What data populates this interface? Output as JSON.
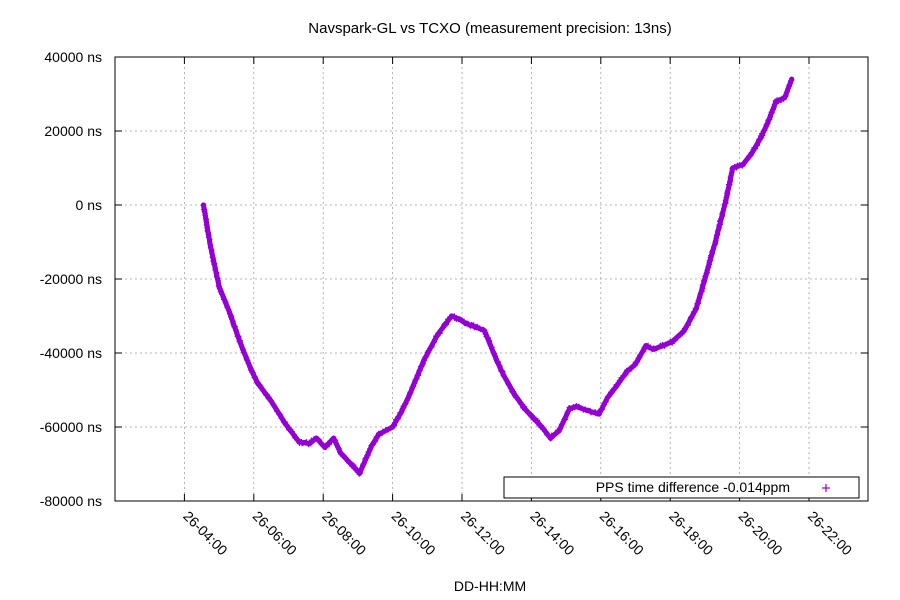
{
  "chart_data": {
    "type": "line",
    "title": "Navspark-GL vs TCXO (measurement precision: 13ns)",
    "xlabel": "DD-HH:MM",
    "ylabel": "",
    "x_ticks": [
      "26-04:00",
      "26-06:00",
      "26-08:00",
      "26-10:00",
      "26-12:00",
      "26-14:00",
      "26-16:00",
      "26-18:00",
      "26-20:00",
      "26-22:00"
    ],
    "x_tick_hours": [
      4,
      6,
      8,
      10,
      12,
      14,
      16,
      18,
      20,
      22
    ],
    "y_ticks": [
      "-80000 ns",
      "-60000 ns",
      "-40000 ns",
      "-20000 ns",
      "0 ns",
      "20000 ns",
      "40000 ns"
    ],
    "y_tick_values": [
      -80000,
      -60000,
      -40000,
      -20000,
      0,
      20000,
      40000
    ],
    "xlim_hours": [
      2.0,
      23.7
    ],
    "ylim": [
      -80000,
      40000
    ],
    "grid": true,
    "legend_position": "bottom-right",
    "series": [
      {
        "name": "PPS time difference -0.014ppm",
        "color": "#9400d3",
        "marker": "plus",
        "x_hours": [
          4.55,
          4.75,
          5.0,
          5.3,
          5.6,
          5.9,
          6.1,
          6.5,
          6.9,
          7.3,
          7.6,
          7.8,
          8.05,
          8.3,
          8.5,
          8.8,
          9.05,
          9.4,
          9.6,
          10.0,
          10.25,
          10.5,
          10.9,
          11.3,
          11.7,
          11.95,
          12.1,
          12.4,
          12.65,
          13.0,
          13.2,
          13.5,
          13.8,
          14.3,
          14.55,
          14.8,
          15.1,
          15.3,
          15.6,
          15.95,
          16.2,
          16.45,
          16.75,
          17.0,
          17.3,
          17.5,
          17.8,
          18.05,
          18.4,
          18.75,
          19.0,
          19.3,
          19.6,
          19.8,
          20.1,
          20.35,
          20.6,
          20.8,
          21.05,
          21.3,
          21.5
        ],
        "values": [
          0,
          -11000,
          -22000,
          -29000,
          -37000,
          -44000,
          -48000,
          -53000,
          -59000,
          -64000,
          -64500,
          -63000,
          -65500,
          -63000,
          -67000,
          -70000,
          -72500,
          -65000,
          -62000,
          -60000,
          -56000,
          -51000,
          -42000,
          -35000,
          -30000,
          -31000,
          -32000,
          -33000,
          -34000,
          -42000,
          -46000,
          -51000,
          -55000,
          -60000,
          -63000,
          -61000,
          -55000,
          -54500,
          -55500,
          -56500,
          -52000,
          -49000,
          -45000,
          -43000,
          -38000,
          -39000,
          -38000,
          -37000,
          -34000,
          -28000,
          -20000,
          -10000,
          1000,
          10000,
          11000,
          14000,
          18000,
          22000,
          28000,
          29000,
          34000
        ]
      }
    ]
  }
}
